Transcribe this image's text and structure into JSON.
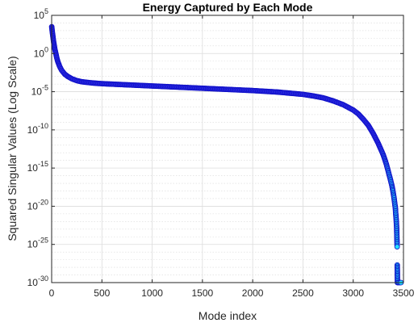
{
  "chart_data": {
    "type": "scatter",
    "title": "Energy Captured by Each Mode",
    "xlabel": "Mode index",
    "ylabel": "Squared Singular Values (Log Scale)",
    "xlim": [
      0,
      3500
    ],
    "ylim_exponent": [
      -30,
      5
    ],
    "yscale": "log",
    "grid": true,
    "minor_grid": true,
    "x_ticks": [
      "0",
      "500",
      "1000",
      "1500",
      "2000",
      "2500",
      "3000",
      "3500"
    ],
    "y_ticks": [
      {
        "base": "10",
        "exp": "5"
      },
      {
        "base": "10",
        "exp": "0"
      },
      {
        "base": "10",
        "exp": "-5"
      },
      {
        "base": "10",
        "exp": "-10"
      },
      {
        "base": "10",
        "exp": "-15"
      },
      {
        "base": "10",
        "exp": "-20"
      },
      {
        "base": "10",
        "exp": "-25"
      },
      {
        "base": "10",
        "exp": "-30"
      }
    ],
    "marker_fill_low": "#2e2ee6",
    "marker_fill_high": "#22e0ff",
    "marker_edge": "#1010c8",
    "series": [
      {
        "points_log10": [
          [
            1,
            3.5
          ],
          [
            5,
            3.0
          ],
          [
            10,
            2.5
          ],
          [
            15,
            2.0
          ],
          [
            20,
            1.5
          ],
          [
            25,
            1.1
          ],
          [
            30,
            0.7
          ],
          [
            40,
            0.1
          ],
          [
            50,
            -0.5
          ],
          [
            60,
            -1.0
          ],
          [
            80,
            -1.7
          ],
          [
            100,
            -2.2
          ],
          [
            130,
            -2.7
          ],
          [
            160,
            -3.0
          ],
          [
            200,
            -3.3
          ],
          [
            250,
            -3.55
          ],
          [
            300,
            -3.7
          ],
          [
            400,
            -3.85
          ],
          [
            500,
            -3.95
          ],
          [
            750,
            -4.1
          ],
          [
            1000,
            -4.25
          ],
          [
            1250,
            -4.4
          ],
          [
            1500,
            -4.55
          ],
          [
            1750,
            -4.7
          ],
          [
            2000,
            -4.85
          ],
          [
            2250,
            -5.05
          ],
          [
            2500,
            -5.35
          ],
          [
            2600,
            -5.55
          ],
          [
            2700,
            -5.8
          ],
          [
            2800,
            -6.2
          ],
          [
            2900,
            -6.7
          ],
          [
            3000,
            -7.4
          ],
          [
            3050,
            -7.9
          ],
          [
            3100,
            -8.6
          ],
          [
            3150,
            -9.4
          ],
          [
            3200,
            -10.5
          ],
          [
            3250,
            -11.8
          ],
          [
            3300,
            -13.3
          ],
          [
            3330,
            -14.5
          ],
          [
            3350,
            -15.5
          ],
          [
            3370,
            -16.5
          ],
          [
            3385,
            -17.3
          ],
          [
            3395,
            -18.0
          ],
          [
            3405,
            -18.8
          ],
          [
            3410,
            -19.3
          ],
          [
            3415,
            -19.8
          ],
          [
            3420,
            -20.3
          ],
          [
            3422,
            -20.8
          ],
          [
            3425,
            -21.3
          ],
          [
            3428,
            -21.8
          ],
          [
            3430,
            -22.3
          ],
          [
            3432,
            -22.8
          ],
          [
            3433,
            -23.3
          ],
          [
            3434,
            -23.8
          ],
          [
            3435,
            -24.3
          ],
          [
            3436,
            -24.8
          ],
          [
            3437,
            -25.3
          ],
          [
            3438,
            -27.7
          ],
          [
            3439,
            -28.6
          ],
          [
            3440,
            -30.0
          ],
          [
            3445,
            -30.0
          ],
          [
            3455,
            -30.0
          ],
          [
            3465,
            -30.0
          ],
          [
            3475,
            -30.0
          ]
        ]
      }
    ]
  }
}
